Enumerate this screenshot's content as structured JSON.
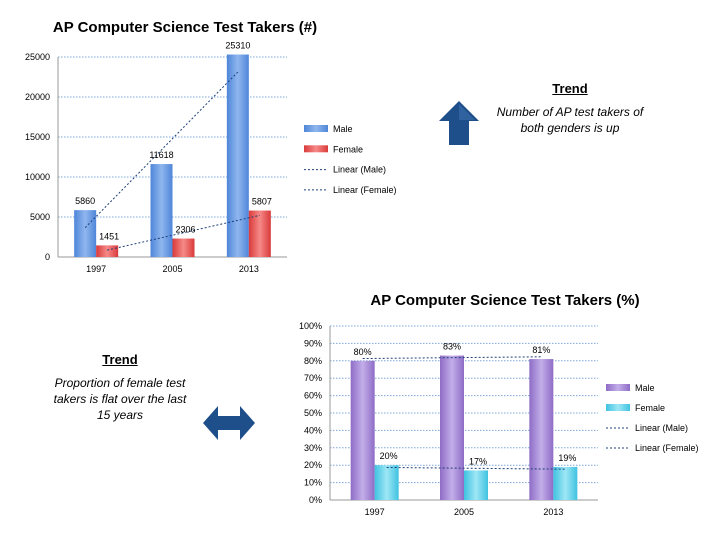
{
  "chart_data": [
    {
      "type": "bar",
      "title": "AP Computer Science Test Takers (#)",
      "categories": [
        "1997",
        "2005",
        "2013"
      ],
      "series": [
        {
          "name": "Male",
          "values": [
            5860,
            11618,
            25310
          ],
          "labels": [
            "5860",
            "11618",
            "25310"
          ],
          "color": "#6a9be3"
        },
        {
          "name": "Female",
          "values": [
            1451,
            2306,
            5807
          ],
          "labels": [
            "1451",
            "2306",
            "5807"
          ],
          "color": "#e8504f"
        }
      ],
      "trendlines": [
        {
          "name": "Linear (Male)",
          "values": [
            3670,
            13395,
            23120
          ]
        },
        {
          "name": "Linear (Female)",
          "values": [
            856,
            3034,
            5212
          ]
        }
      ],
      "ylim": [
        0,
        25000
      ],
      "yticks": [
        "0",
        "5000",
        "10000",
        "15000",
        "20000",
        "25000"
      ],
      "ytick_values": [
        0,
        5000,
        10000,
        15000,
        20000,
        25000
      ],
      "grid": true,
      "legend": "right"
    },
    {
      "type": "bar",
      "title": "AP Computer Science Test Takers (%)",
      "categories": [
        "1997",
        "2005",
        "2013"
      ],
      "series": [
        {
          "name": "Male",
          "values": [
            80,
            83,
            81
          ],
          "labels": [
            "80%",
            "83%",
            "81%"
          ],
          "color": "#a98bd8"
        },
        {
          "name": "Female",
          "values": [
            20,
            17,
            19
          ],
          "labels": [
            "20%",
            "17%",
            "19%"
          ],
          "color": "#66d3ea"
        }
      ],
      "trendlines": [
        {
          "name": "Linear (Male)",
          "values": [
            81.3,
            81.8,
            82.3
          ]
        },
        {
          "name": "Linear (Female)",
          "values": [
            18.7,
            18.2,
            17.7
          ]
        }
      ],
      "ylim": [
        0,
        100
      ],
      "yticks": [
        "0%",
        "10%",
        "20%",
        "30%",
        "40%",
        "50%",
        "60%",
        "70%",
        "80%",
        "90%",
        "100%"
      ],
      "ytick_values": [
        0,
        10,
        20,
        30,
        40,
        50,
        60,
        70,
        80,
        90,
        100
      ],
      "grid": true,
      "legend": "right"
    }
  ],
  "trend_top": {
    "heading": "Trend",
    "line1": "Number of AP test takers of",
    "line2": "both genders is up",
    "icon": "up-arrow-icon",
    "icon_color": "#1f4f8a"
  },
  "trend_bottom": {
    "heading": "Trend",
    "line1": "Proportion of female test",
    "line2": "takers is flat over the last",
    "line3": "15 years",
    "icon": "left-right-arrow-icon",
    "icon_color": "#1f4f8a"
  }
}
